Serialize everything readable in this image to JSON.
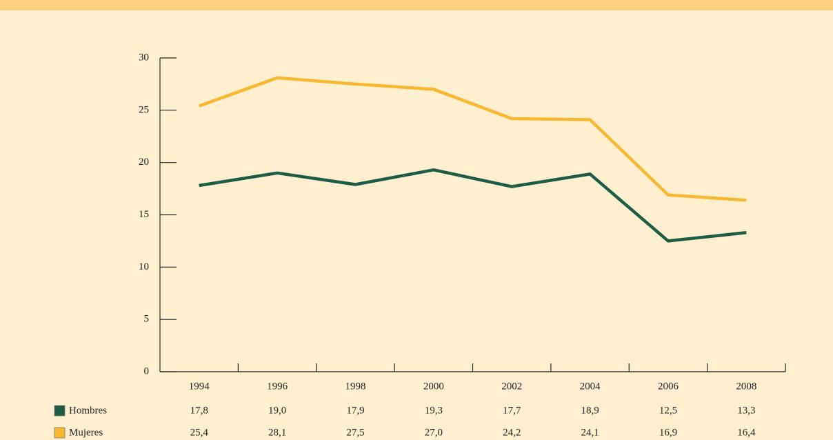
{
  "chart_data": {
    "type": "line",
    "categories": [
      "1994",
      "1996",
      "1998",
      "2000",
      "2002",
      "2004",
      "2006",
      "2008"
    ],
    "series": [
      {
        "name": "Hombres",
        "color": "#1d5c45",
        "values": [
          17.8,
          19.0,
          17.9,
          19.3,
          17.7,
          18.9,
          12.5,
          13.3
        ],
        "value_labels": [
          "17,8",
          "19,0",
          "17,9",
          "19,3",
          "17,7",
          "18,9",
          "12,5",
          "13,3"
        ]
      },
      {
        "name": "Mujeres",
        "color": "#f8b731",
        "values": [
          25.4,
          28.1,
          27.5,
          27.0,
          24.2,
          24.1,
          16.9,
          16.4
        ],
        "value_labels": [
          "25,4",
          "28,1",
          "27,5",
          "27,0",
          "24,2",
          "24,1",
          "16,9",
          "16,4"
        ]
      }
    ],
    "ylim": [
      0,
      30
    ],
    "yticks": [
      0,
      5,
      10,
      15,
      20,
      25,
      30
    ],
    "grid": false
  }
}
